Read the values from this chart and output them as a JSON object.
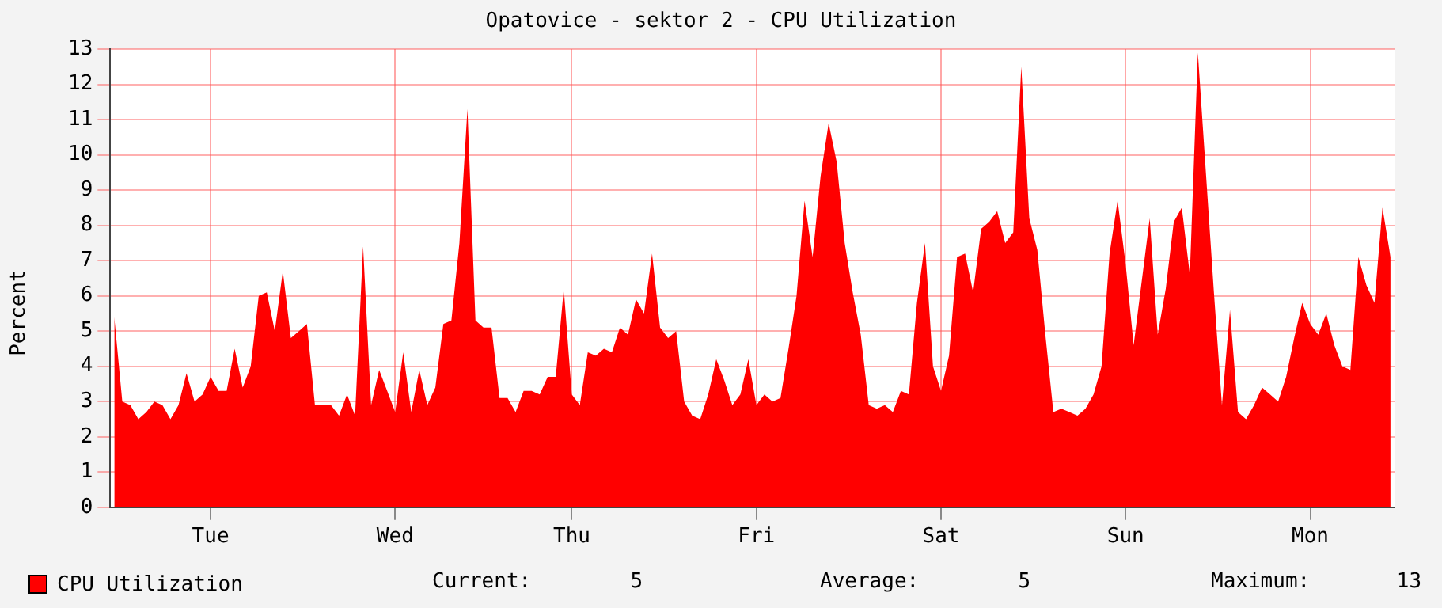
{
  "chart_data": {
    "type": "area",
    "title": "Opatovice - sektor 2 - CPU Utilization",
    "ylabel": "Percent",
    "categories": [
      null,
      null,
      null,
      null,
      null,
      null,
      null,
      null,
      null,
      null,
      null,
      null,
      "Tue",
      null,
      null,
      null,
      null,
      null,
      null,
      null,
      null,
      null,
      null,
      null,
      null,
      null,
      null,
      null,
      null,
      null,
      null,
      null,
      null,
      null,
      null,
      "Wed",
      null,
      null,
      null,
      null,
      null,
      null,
      null,
      null,
      null,
      null,
      null,
      null,
      null,
      null,
      null,
      null,
      null,
      null,
      null,
      null,
      null,
      "Thu",
      null,
      null,
      null,
      null,
      null,
      null,
      null,
      null,
      null,
      null,
      null,
      null,
      null,
      null,
      null,
      null,
      null,
      null,
      null,
      null,
      null,
      null,
      "Fri",
      null,
      null,
      null,
      null,
      null,
      null,
      null,
      null,
      null,
      null,
      null,
      null,
      null,
      null,
      null,
      null,
      null,
      null,
      null,
      null,
      null,
      null,
      "Sat",
      null,
      null,
      null,
      null,
      null,
      null,
      null,
      null,
      null,
      null,
      null,
      null,
      null,
      null,
      null,
      null,
      null,
      null,
      null,
      null,
      null,
      null,
      "Sun",
      null,
      null,
      null,
      null,
      null,
      null,
      null,
      null,
      null,
      null,
      null,
      null,
      null,
      null,
      null,
      null,
      null,
      null,
      null,
      null,
      null,
      null,
      "Mon",
      null,
      null,
      null,
      null,
      null,
      null,
      null,
      null,
      null,
      null
    ],
    "series": [
      {
        "name": "CPU Utilization",
        "color": "#ff0000",
        "values": [
          5.4,
          3.0,
          2.9,
          2.5,
          2.7,
          3.0,
          2.9,
          2.5,
          2.9,
          3.8,
          3.0,
          3.2,
          3.7,
          3.3,
          3.3,
          4.5,
          3.4,
          4.0,
          6.0,
          6.1,
          5.0,
          6.7,
          4.8,
          5.0,
          5.2,
          2.9,
          2.9,
          2.9,
          2.6,
          3.2,
          2.6,
          7.4,
          2.9,
          3.9,
          3.3,
          2.7,
          4.4,
          2.7,
          3.9,
          2.9,
          3.4,
          5.2,
          5.3,
          7.5,
          11.3,
          5.3,
          5.1,
          5.1,
          3.1,
          3.1,
          2.7,
          3.3,
          3.3,
          3.2,
          3.7,
          3.7,
          6.2,
          3.2,
          2.9,
          4.4,
          4.3,
          4.5,
          4.4,
          5.1,
          4.9,
          5.9,
          5.5,
          7.2,
          5.1,
          4.8,
          5.0,
          3.0,
          2.6,
          2.5,
          3.2,
          4.2,
          3.6,
          2.9,
          3.2,
          4.2,
          2.9,
          3.2,
          3.0,
          3.1,
          4.5,
          6.0,
          8.7,
          7.1,
          9.4,
          10.9,
          9.8,
          7.5,
          6.1,
          4.9,
          2.9,
          2.8,
          2.9,
          2.7,
          3.3,
          3.2,
          5.8,
          7.5,
          4.0,
          3.3,
          4.3,
          7.1,
          7.2,
          6.1,
          7.9,
          8.1,
          8.4,
          7.5,
          7.8,
          12.5,
          8.2,
          7.3,
          4.9,
          2.7,
          2.8,
          2.7,
          2.6,
          2.8,
          3.2,
          4.0,
          7.2,
          8.7,
          6.9,
          4.6,
          6.4,
          8.2,
          4.9,
          6.2,
          8.1,
          8.5,
          6.6,
          12.9,
          9.5,
          6.1,
          2.9,
          5.6,
          2.7,
          2.5,
          2.9,
          3.4,
          3.2,
          3.0,
          3.7,
          4.8,
          5.8,
          5.2,
          4.9,
          5.5,
          4.6,
          4.0,
          3.9,
          7.1,
          6.3,
          5.8,
          8.5,
          7.1
        ]
      }
    ],
    "ylim": [
      0,
      13
    ],
    "yticks": [
      0,
      1,
      2,
      3,
      4,
      5,
      6,
      7,
      8,
      9,
      10,
      11,
      12,
      13
    ],
    "grid": true,
    "legend": "bottom",
    "annotations": [
      "Current:        5",
      "Average:        5",
      "Maximum:       13"
    ]
  }
}
